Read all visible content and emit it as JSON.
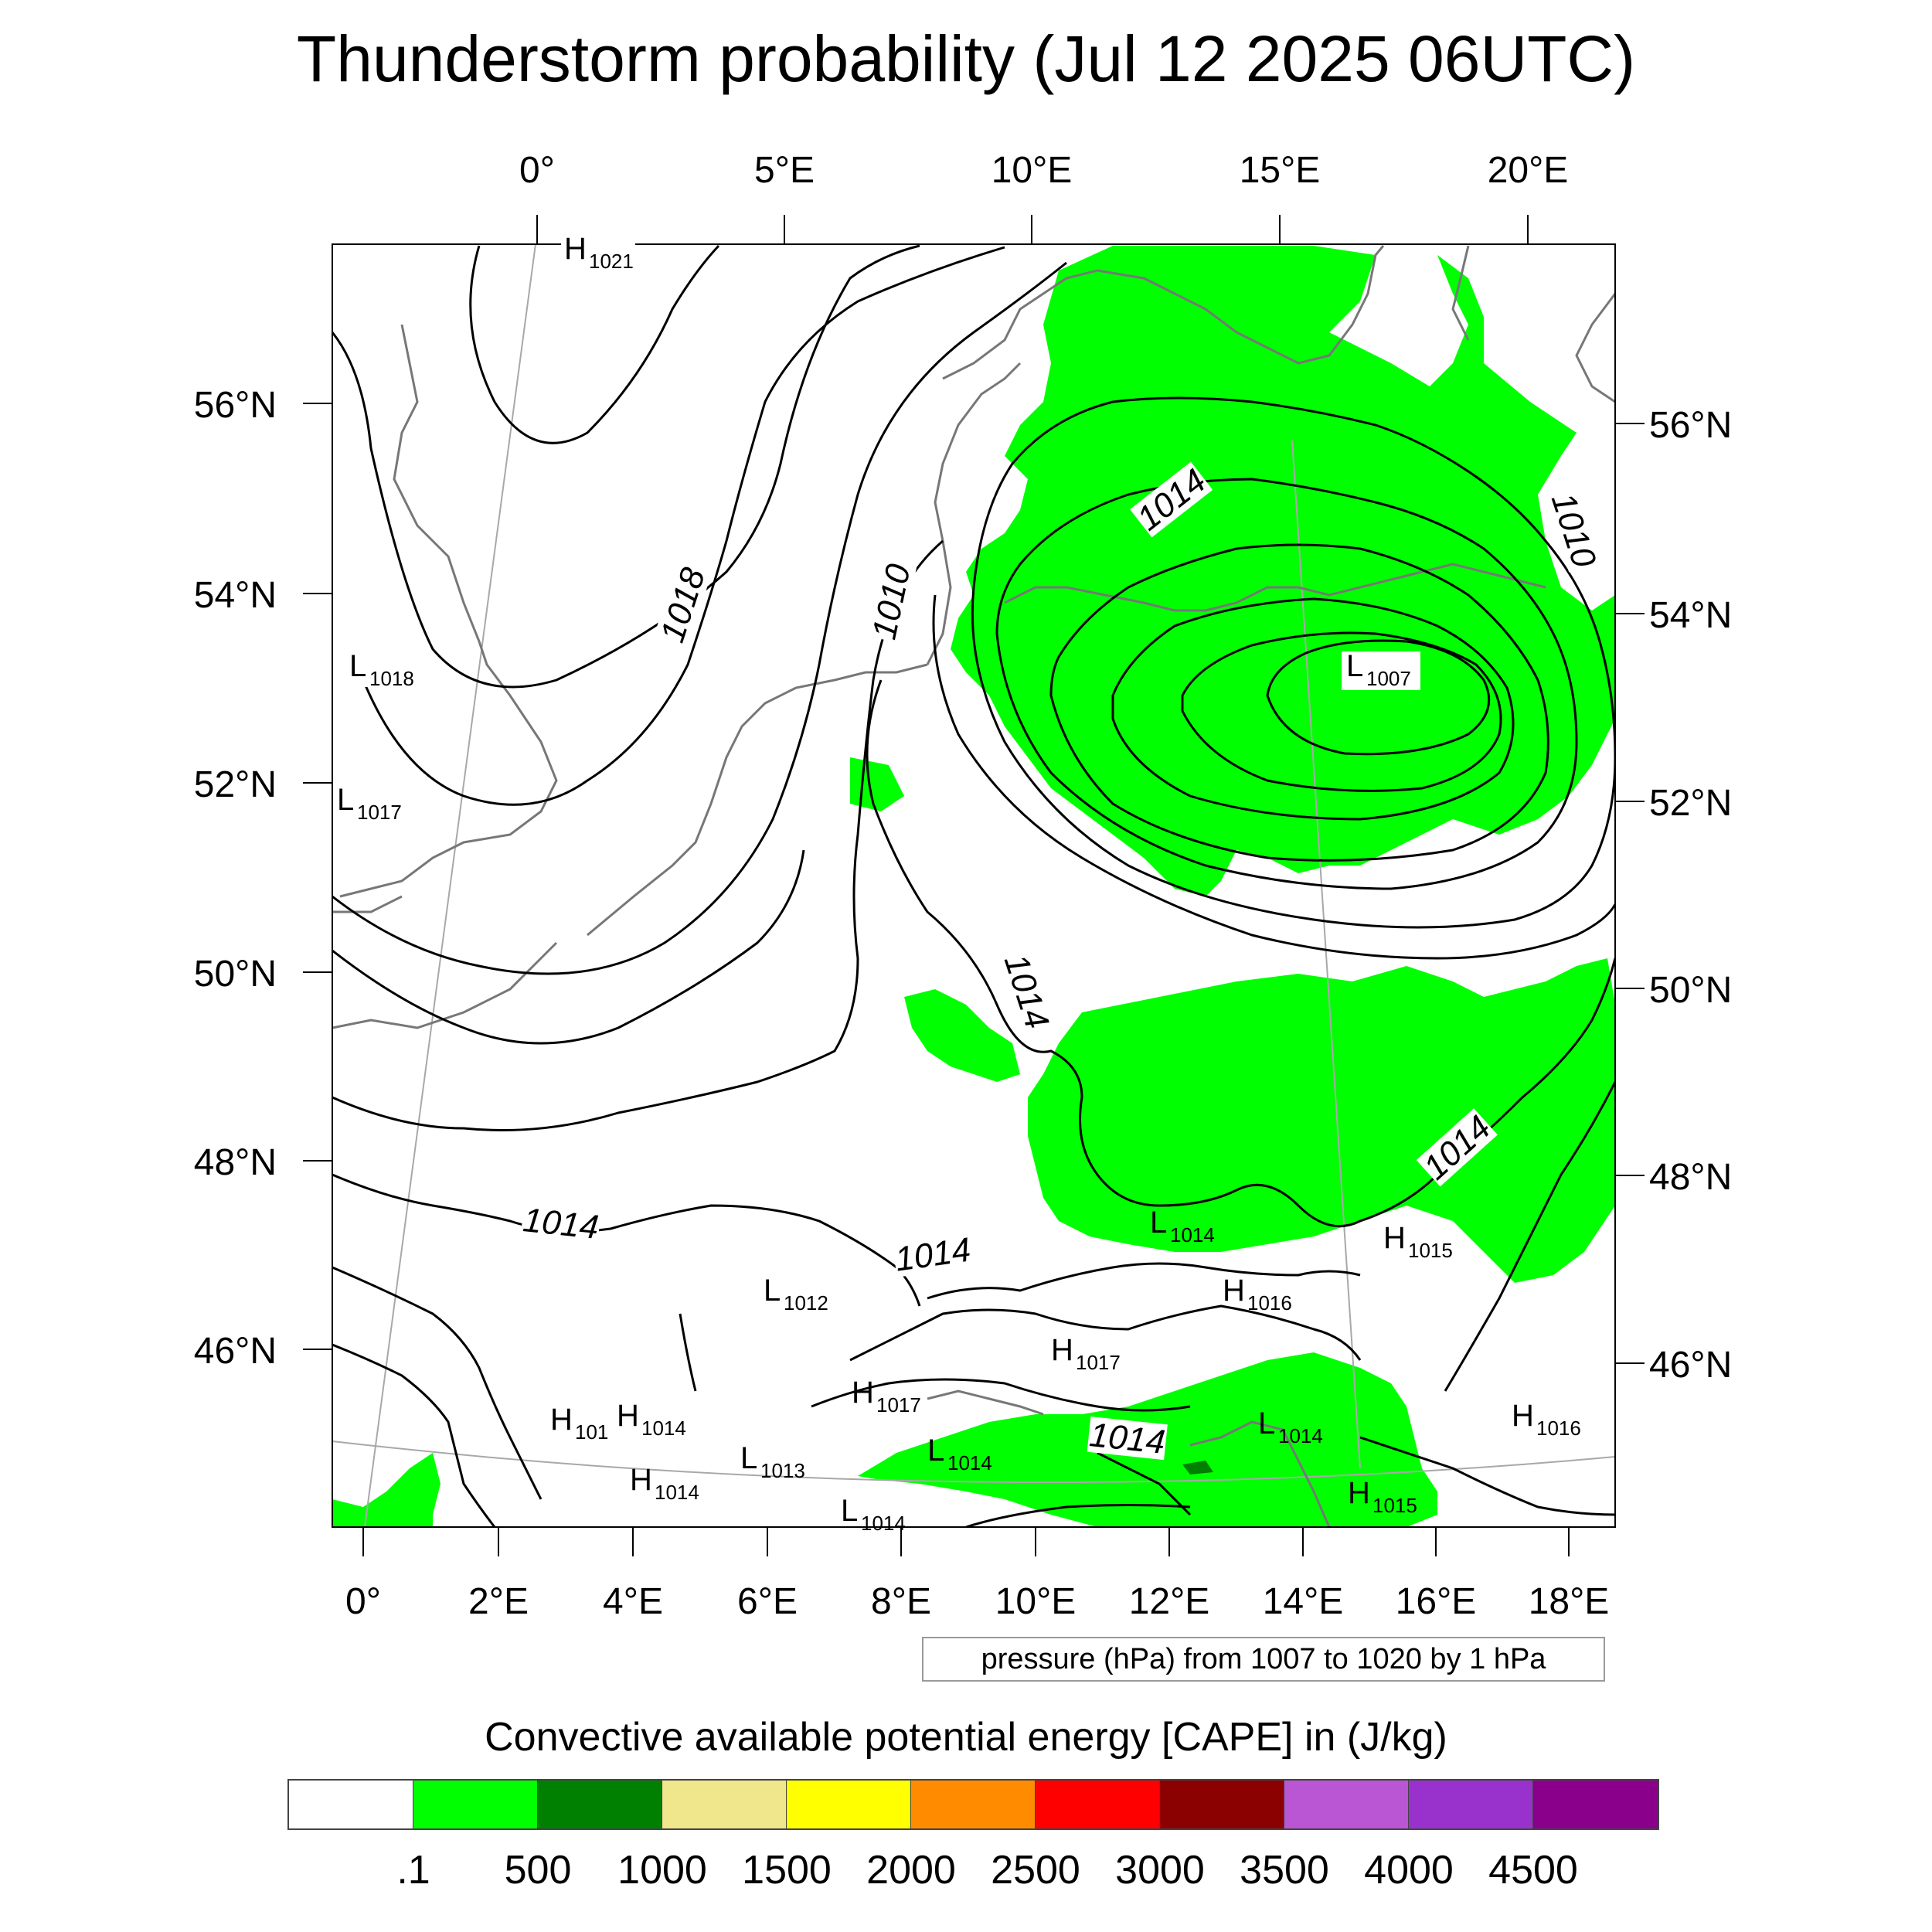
{
  "title": "Thunderstorm probability (Jul 12 2025 06UTC)",
  "map": {
    "top_lon_labels": [
      "0°",
      "5°E",
      "10°E",
      "15°E",
      "20°E"
    ],
    "bottom_lon_labels": [
      "0°",
      "2°E",
      "4°E",
      "6°E",
      "8°E",
      "10°E",
      "12°E",
      "14°E",
      "16°E",
      "18°E"
    ],
    "left_lat_labels": [
      "56°N",
      "54°N",
      "52°N",
      "50°N",
      "48°N",
      "46°N"
    ],
    "right_lat_labels": [
      "56°N",
      "54°N",
      "52°N",
      "50°N",
      "48°N",
      "46°N"
    ],
    "field_color": "#00ff00",
    "isobar_labels": [
      "1018",
      "1014",
      "1010",
      "1010",
      "1014",
      "1014",
      "1014",
      "1014",
      "1014"
    ],
    "pressure_centers": [
      {
        "type": "H",
        "value": "1021"
      },
      {
        "type": "L",
        "value": "1018"
      },
      {
        "type": "L",
        "value": "1017"
      },
      {
        "type": "L",
        "value": "1007"
      },
      {
        "type": "L",
        "value": "1014"
      },
      {
        "type": "H",
        "value": "1015"
      },
      {
        "type": "H",
        "value": "1016"
      },
      {
        "type": "L",
        "value": "1012"
      },
      {
        "type": "H",
        "value": "1017"
      },
      {
        "type": "H",
        "value": "1017"
      },
      {
        "type": "H",
        "value": "101"
      },
      {
        "type": "H",
        "value": "1014"
      },
      {
        "type": "H",
        "value": "1014"
      },
      {
        "type": "L",
        "value": "1013"
      },
      {
        "type": "L",
        "value": "1014"
      },
      {
        "type": "L",
        "value": "1014"
      },
      {
        "type": "L",
        "value": "1014"
      },
      {
        "type": "H",
        "value": "1016"
      },
      {
        "type": "H",
        "value": "1015"
      }
    ]
  },
  "contour_info": "pressure (hPa) from 1007 to 1020 by 1 hPa",
  "colorbar": {
    "title": "Convective available potential energy [CAPE] in (J/kg)",
    "colors": [
      "#ffffff",
      "#00ff00",
      "#008000",
      "#f0e68c",
      "#ffff00",
      "#ff8c00",
      "#ff0000",
      "#8b0000",
      "#ba55d3",
      "#9932cc",
      "#8b008b"
    ],
    "labels": [
      ".1",
      "500",
      "1000",
      "1500",
      "2000",
      "2500",
      "3000",
      "3500",
      "4000",
      "4500"
    ]
  }
}
